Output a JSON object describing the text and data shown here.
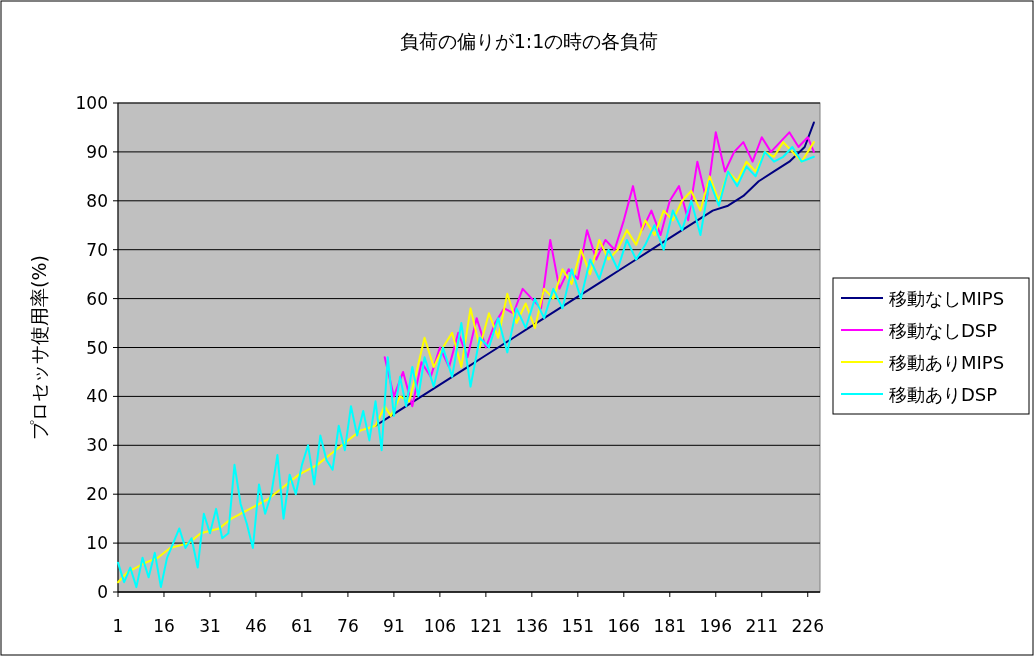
{
  "chart_data": {
    "type": "line",
    "title": "負荷の偏りが1:1の時の各負荷",
    "ylabel": "プロセッサ使用率(%)",
    "xlim": [
      1,
      230
    ],
    "xticks": [
      1,
      16,
      31,
      46,
      61,
      76,
      91,
      106,
      121,
      136,
      151,
      166,
      181,
      196,
      211,
      226
    ],
    "ylim": [
      0,
      100
    ],
    "yticks": [
      0,
      10,
      20,
      30,
      40,
      50,
      60,
      70,
      80,
      90,
      100
    ],
    "grid": "y",
    "legend": "right",
    "marker": "none",
    "line_style": "solid",
    "series": [
      {
        "name": "移動なしMIPS",
        "color": "#000080",
        "x": [
          85,
          90,
          95,
          100,
          105,
          110,
          115,
          120,
          125,
          130,
          135,
          140,
          145,
          150,
          155,
          160,
          165,
          170,
          175,
          180,
          185,
          190,
          195,
          200,
          205,
          210,
          215,
          220,
          225,
          228
        ],
        "values": [
          34,
          36,
          38,
          40,
          42,
          44,
          46,
          48,
          50,
          52,
          54,
          56,
          58,
          60,
          62,
          64,
          66,
          68,
          70,
          72,
          74,
          76,
          78,
          79,
          81,
          84,
          86,
          88,
          91,
          96
        ]
      },
      {
        "name": "移動なしDSP",
        "color": "#ff00ff",
        "x": [
          88,
          91,
          94,
          97,
          100,
          103,
          106,
          109,
          112,
          115,
          118,
          121,
          124,
          127,
          130,
          133,
          136,
          139,
          142,
          145,
          148,
          151,
          154,
          157,
          160,
          163,
          166,
          169,
          172,
          175,
          178,
          181,
          184,
          187,
          190,
          193,
          196,
          199,
          202,
          205,
          208,
          211,
          214,
          217,
          220,
          223,
          226,
          228
        ],
        "values": [
          48,
          40,
          45,
          38,
          47,
          44,
          50,
          46,
          53,
          48,
          56,
          50,
          55,
          58,
          57,
          62,
          60,
          58,
          72,
          62,
          66,
          64,
          74,
          68,
          72,
          70,
          76,
          83,
          74,
          78,
          73,
          80,
          83,
          76,
          88,
          80,
          94,
          86,
          90,
          92,
          88,
          93,
          90,
          92,
          94,
          91,
          93,
          90
        ]
      },
      {
        "name": "移動ありMIPS",
        "color": "#ffff00",
        "x": [
          1,
          4,
          10,
          14,
          18,
          24,
          28,
          34,
          38,
          44,
          50,
          54,
          60,
          66,
          70,
          76,
          80,
          85,
          88,
          90,
          93,
          96,
          98,
          101,
          104,
          107,
          110,
          113,
          116,
          119,
          122,
          125,
          128,
          131,
          134,
          137,
          140,
          143,
          146,
          149,
          152,
          155,
          158,
          161,
          164,
          167,
          170,
          173,
          176,
          179,
          182,
          185,
          188,
          191,
          194,
          197,
          200,
          203,
          206,
          209,
          212,
          215,
          218,
          221,
          224,
          228
        ],
        "values": [
          2,
          4,
          6,
          7,
          9,
          10,
          12,
          13,
          15,
          17,
          19,
          21,
          24,
          26,
          28,
          31,
          33,
          34,
          38,
          36,
          40,
          39,
          44,
          52,
          46,
          50,
          53,
          46,
          58,
          50,
          57,
          52,
          61,
          55,
          59,
          54,
          62,
          60,
          66,
          63,
          70,
          65,
          72,
          68,
          70,
          74,
          71,
          76,
          73,
          78,
          76,
          80,
          82,
          78,
          85,
          80,
          86,
          84,
          88,
          86,
          90,
          89,
          92,
          90,
          88,
          92
        ]
      },
      {
        "name": "移動ありDSP",
        "color": "#00ffff",
        "x": [
          1,
          3,
          5,
          7,
          9,
          11,
          13,
          15,
          17,
          19,
          21,
          23,
          25,
          27,
          29,
          31,
          33,
          35,
          37,
          39,
          41,
          43,
          45,
          47,
          49,
          51,
          53,
          55,
          57,
          59,
          61,
          63,
          65,
          67,
          69,
          71,
          73,
          75,
          77,
          79,
          81,
          83,
          85,
          87,
          89,
          91,
          93,
          95,
          97,
          99,
          101,
          104,
          107,
          110,
          113,
          116,
          119,
          122,
          125,
          128,
          131,
          134,
          137,
          140,
          143,
          146,
          149,
          152,
          155,
          158,
          161,
          164,
          167,
          170,
          173,
          176,
          179,
          182,
          185,
          188,
          191,
          194,
          197,
          200,
          203,
          206,
          209,
          212,
          215,
          218,
          221,
          224,
          228
        ],
        "values": [
          6,
          2,
          5,
          1,
          7,
          3,
          8,
          1,
          7,
          10,
          13,
          9,
          11,
          5,
          16,
          12,
          17,
          11,
          12,
          26,
          18,
          14,
          9,
          22,
          16,
          20,
          28,
          15,
          24,
          20,
          26,
          30,
          22,
          32,
          27,
          25,
          34,
          29,
          38,
          32,
          37,
          31,
          39,
          29,
          48,
          36,
          44,
          38,
          46,
          40,
          48,
          42,
          50,
          44,
          55,
          42,
          52,
          50,
          56,
          49,
          58,
          54,
          60,
          56,
          62,
          58,
          66,
          60,
          68,
          64,
          70,
          66,
          72,
          68,
          71,
          75,
          70,
          78,
          74,
          80,
          73,
          84,
          79,
          86,
          83,
          87,
          85,
          90,
          88,
          89,
          91,
          88,
          89
        ]
      }
    ]
  }
}
